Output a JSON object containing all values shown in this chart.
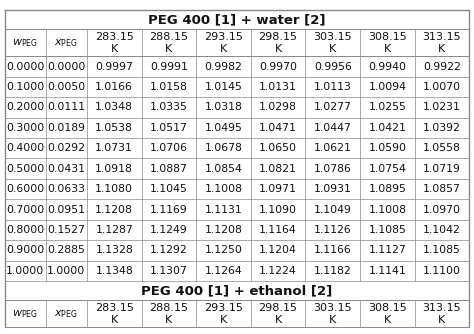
{
  "title1": "PEG 400 [1] + water [2]",
  "title2": "PEG 400 [1] + ethanol [2]",
  "col_headers": [
    "wₘPEG",
    "xₘPEG",
    "283.15\nK",
    "288.15\nK",
    "293.15\nK",
    "298.15\nK",
    "303.15\nK",
    "308.15\nK",
    "313.15\nK"
  ],
  "water_rows": [
    [
      "0.0000",
      "0.0000",
      "0.9997",
      "0.9991",
      "0.9982",
      "0.9970",
      "0.9956",
      "0.9940",
      "0.9922"
    ],
    [
      "0.1000",
      "0.0050",
      "1.0166",
      "1.0158",
      "1.0145",
      "1.0131",
      "1.0113",
      "1.0094",
      "1.0070"
    ],
    [
      "0.2000",
      "0.0111",
      "1.0348",
      "1.0335",
      "1.0318",
      "1.0298",
      "1.0277",
      "1.0255",
      "1.0231"
    ],
    [
      "0.3000",
      "0.0189",
      "1.0538",
      "1.0517",
      "1.0495",
      "1.0471",
      "1.0447",
      "1.0421",
      "1.0392"
    ],
    [
      "0.4000",
      "0.0292",
      "1.0731",
      "1.0706",
      "1.0678",
      "1.0650",
      "1.0621",
      "1.0590",
      "1.0558"
    ],
    [
      "0.5000",
      "0.0431",
      "1.0918",
      "1.0887",
      "1.0854",
      "1.0821",
      "1.0786",
      "1.0754",
      "1.0719"
    ],
    [
      "0.6000",
      "0.0633",
      "1.1080",
      "1.1045",
      "1.1008",
      "1.0971",
      "1.0931",
      "1.0895",
      "1.0857"
    ],
    [
      "0.7000",
      "0.0951",
      "1.1208",
      "1.1169",
      "1.1131",
      "1.1090",
      "1.1049",
      "1.1008",
      "1.0970"
    ],
    [
      "0.8000",
      "0.1527",
      "1.1287",
      "1.1249",
      "1.1208",
      "1.1164",
      "1.1126",
      "1.1085",
      "1.1042"
    ],
    [
      "0.9000",
      "0.2885",
      "1.1328",
      "1.1292",
      "1.1250",
      "1.1204",
      "1.1166",
      "1.1127",
      "1.1085"
    ],
    [
      "1.0000",
      "1.0000",
      "1.1348",
      "1.1307",
      "1.1264",
      "1.1224",
      "1.1182",
      "1.1141",
      "1.1100"
    ]
  ],
  "ethanol_header": [
    "wₘPEG",
    "xₘPEG",
    "283.15\nK",
    "288.15\nK",
    "293.15\nK",
    "298.15\nK",
    "303.15\nK",
    "308.15\nK",
    "313.15\nK"
  ],
  "bg_color": "#f5f5f0",
  "header_bg": "#e8e8e0",
  "line_color": "#888888",
  "text_color": "#111111",
  "title_fontsize": 9.5,
  "cell_fontsize": 7.8,
  "header_fontsize": 8.0
}
